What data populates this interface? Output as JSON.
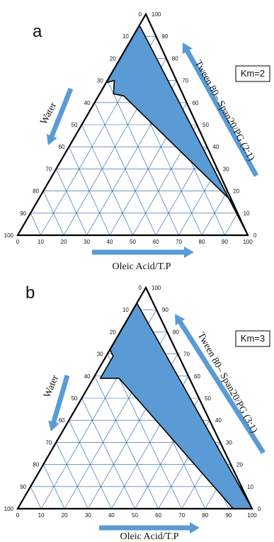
{
  "chart_data": [
    {
      "type": "ternary",
      "panel_label": "a",
      "km_label": "Km=2",
      "axis_labels": {
        "left": "Water",
        "right": "Tween 80– Span20/PG (2:1)",
        "bottom": "Oleic Acid/T.P"
      },
      "ticks": [
        0,
        10,
        20,
        30,
        40,
        50,
        60,
        70,
        80,
        90,
        100
      ],
      "region": {
        "name": "",
        "color": "#5b9bd5",
        "points": [
          {
            "tween": 95,
            "water": 5,
            "oil": 0
          },
          {
            "tween": 69,
            "water": 31,
            "oil": 0
          },
          {
            "tween": 70,
            "water": 27,
            "oil": 3
          },
          {
            "tween": 64,
            "water": 30,
            "oil": 6
          },
          {
            "tween": 63,
            "water": 26,
            "oil": 11
          },
          {
            "tween": 15,
            "water": 0,
            "oil": 85
          },
          {
            "tween": 0,
            "water": 0,
            "oil": 100
          }
        ]
      }
    },
    {
      "type": "ternary",
      "panel_label": "b",
      "km_label": "Km=3",
      "axis_labels": {
        "left": "Water",
        "right": "Tween 80– Span20/PG (3:1)",
        "bottom": "Oleic Acid/T.P"
      },
      "ticks": [
        0,
        10,
        20,
        30,
        40,
        50,
        60,
        70,
        80,
        90,
        100
      ],
      "region": {
        "name": "",
        "color": "#5b9bd5",
        "points": [
          {
            "tween": 93,
            "water": 7,
            "oil": 0
          },
          {
            "tween": 72,
            "water": 28,
            "oil": 0
          },
          {
            "tween": 69,
            "water": 28,
            "oil": 3
          },
          {
            "tween": 59,
            "water": 38,
            "oil": 3
          },
          {
            "tween": 59,
            "water": 30,
            "oil": 11
          },
          {
            "tween": 0,
            "water": 8,
            "oil": 92
          },
          {
            "tween": 0,
            "water": 0,
            "oil": 100
          }
        ]
      }
    }
  ]
}
